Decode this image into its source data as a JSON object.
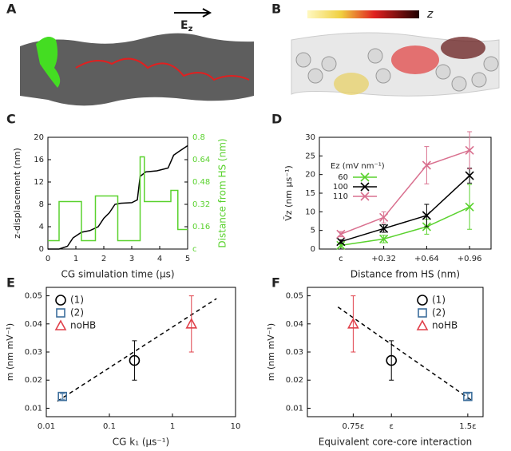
{
  "panel_a": {
    "label": "A",
    "field_label": "E",
    "field_subscript": "z"
  },
  "panel_b": {
    "label": "B",
    "scale_label": "z"
  },
  "chart_data": [
    {
      "type": "line",
      "label": "C",
      "xlabel": "CG simulation time (μs)",
      "ylabel": "z-displacement (nm)",
      "y2label": "Distance from HS (nm)",
      "y2color": "#5ad22e",
      "xlim": [
        0,
        5
      ],
      "xticks": [
        0,
        1,
        2,
        3,
        4,
        5
      ],
      "ylim": [
        0,
        20
      ],
      "yticks": [
        0,
        4,
        8,
        12,
        16,
        20
      ],
      "y2lim": [
        0,
        0.8
      ],
      "y2ticks": [
        {
          "value": 0,
          "label": "c"
        },
        0.16,
        0.32,
        0.48,
        0.64,
        0.8
      ],
      "series": [
        {
          "color": "#000000",
          "x": [
            0,
            0.4,
            0.7,
            0.9,
            1.2,
            1.5,
            1.8,
            2.0,
            2.2,
            2.4,
            2.6,
            3.0,
            3.2,
            3.3,
            3.5,
            3.9,
            4.3,
            4.5,
            4.7,
            5.0
          ],
          "values": [
            0,
            0,
            0.5,
            2,
            3,
            3.3,
            4,
            5.5,
            6.5,
            8,
            8.2,
            8.3,
            8.8,
            13,
            13.8,
            14,
            14.5,
            16.8,
            17.5,
            18.5
          ]
        },
        {
          "color": "#5ad22e",
          "axis": "y2",
          "x": [
            0,
            0.4,
            0.4,
            1.2,
            1.2,
            1.7,
            1.7,
            2.5,
            2.5,
            3.3,
            3.3,
            3.45,
            3.45,
            4.4,
            4.4,
            4.65,
            4.65,
            5.0
          ],
          "values": [
            0.06,
            0.06,
            0.34,
            0.34,
            0.06,
            0.06,
            0.38,
            0.38,
            0.06,
            0.06,
            0.66,
            0.66,
            0.34,
            0.34,
            0.42,
            0.42,
            0.14,
            0.14
          ]
        }
      ]
    },
    {
      "type": "line",
      "label": "D",
      "xlabel": "Distance from HS (nm)",
      "ylabel": "V̄z (nm μs⁻¹)",
      "categories": [
        "c",
        "+0.32",
        "+0.64",
        "+0.96"
      ],
      "ylim": [
        0,
        30
      ],
      "yticks": [
        0,
        5,
        10,
        15,
        20,
        25,
        30
      ],
      "legend_title": "Ez (mV nm⁻¹)",
      "legend": "upper left",
      "series": [
        {
          "name": "60",
          "color": "#5ad22e",
          "marker": "x",
          "values": [
            1,
            2.7,
            6,
            11.3
          ],
          "errors": [
            0.5,
            1,
            2,
            6
          ]
        },
        {
          "name": "100",
          "color": "#000000",
          "marker": "x",
          "values": [
            2,
            5.5,
            9,
            19.7
          ],
          "errors": [
            0.5,
            1,
            3,
            2
          ]
        },
        {
          "name": "110",
          "color": "#d9708f",
          "marker": "x",
          "values": [
            4,
            8.5,
            22.5,
            26.5
          ],
          "errors": [
            0.7,
            1.5,
            5,
            5
          ]
        }
      ]
    },
    {
      "type": "scatter",
      "label": "E",
      "xlabel": "CG k₁ (μs⁻¹)",
      "ylabel": "m (nm mV⁻¹)",
      "log_x": true,
      "xlim": [
        0.01,
        10
      ],
      "xticks": [
        0.01,
        0.1,
        1,
        10
      ],
      "ylim": [
        0.007,
        0.053
      ],
      "yticks": [
        0.01,
        0.02,
        0.03,
        0.04,
        0.05
      ],
      "legend": "upper left",
      "series": [
        {
          "name": "(1)",
          "marker": "circle",
          "color": "#000000",
          "x": [
            0.25
          ],
          "values": [
            0.027
          ],
          "errors": [
            0.007
          ]
        },
        {
          "name": "(2)",
          "marker": "square",
          "color": "#3c6e9c",
          "x": [
            0.018
          ],
          "values": [
            0.0142
          ],
          "errors": [
            0.001
          ]
        },
        {
          "name": "noHB",
          "marker": "triangle",
          "color": "#e0404a",
          "x": [
            2
          ],
          "values": [
            0.04
          ],
          "errors": [
            0.01
          ]
        }
      ],
      "fit": {
        "x": [
          0.015,
          5
        ],
        "values": [
          0.0125,
          0.049
        ]
      }
    },
    {
      "type": "scatter",
      "label": "F",
      "xlabel": "Equivalent core-core interaction",
      "ylabel": "m (nm mV⁻¹)",
      "xlim": [
        0.45,
        1.6
      ],
      "xticks": [
        {
          "value": 0.75,
          "label": "0.75ε"
        },
        {
          "value": 1,
          "label": "ε"
        },
        {
          "value": 1.5,
          "label": "1.5ε"
        }
      ],
      "ylim": [
        0.007,
        0.053
      ],
      "yticks": [
        0.01,
        0.02,
        0.03,
        0.04,
        0.05
      ],
      "legend": "upper right",
      "series": [
        {
          "name": "(1)",
          "marker": "circle",
          "color": "#000000",
          "x": [
            1
          ],
          "values": [
            0.027
          ],
          "errors": [
            0.007
          ]
        },
        {
          "name": "(2)",
          "marker": "square",
          "color": "#3c6e9c",
          "x": [
            1.5
          ],
          "values": [
            0.0142
          ],
          "errors": [
            0.001
          ]
        },
        {
          "name": "noHB",
          "marker": "triangle",
          "color": "#e0404a",
          "x": [
            0.75
          ],
          "values": [
            0.04
          ],
          "errors": [
            0.01
          ]
        }
      ],
      "fit": {
        "x": [
          0.65,
          1.52
        ],
        "values": [
          0.046,
          0.013
        ]
      }
    }
  ]
}
